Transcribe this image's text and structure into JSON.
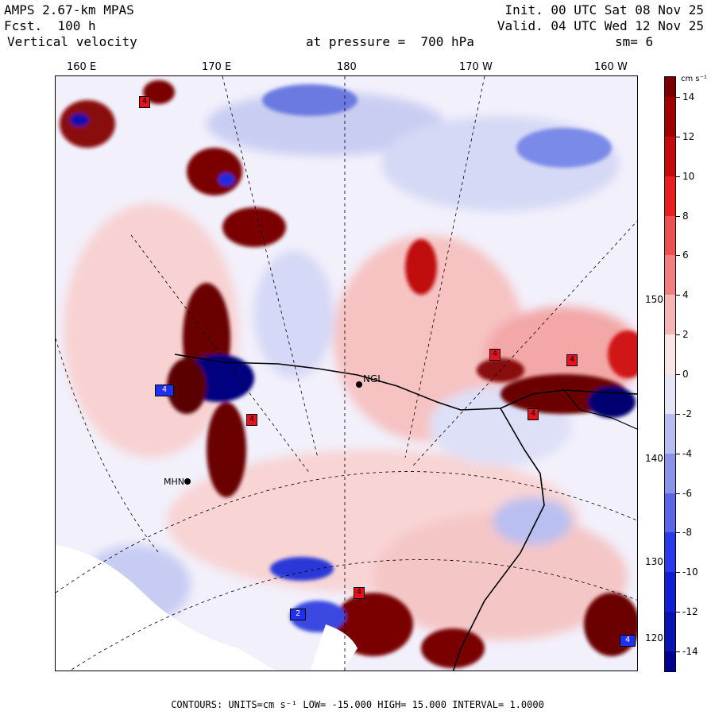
{
  "header": {
    "model": "AMPS 2.67-km MPAS",
    "forecast": "Fcst.  100 h",
    "field": "Vertical velocity",
    "init": "Init. 00 UTC Sat 08 Nov 25",
    "valid": "Valid. 04 UTC Wed 12 Nov 25",
    "level": "at pressure =  700 hPa",
    "smoothing": "sm= 6"
  },
  "map": {
    "longitude_labels": [
      "160 E",
      "170 E",
      "180",
      "170 W",
      "160 W"
    ],
    "latitude_labels": [
      "150 W",
      "140 W",
      "130 W",
      "120 W"
    ],
    "stations": [
      {
        "id": "NGL",
        "label": "NGL"
      },
      {
        "id": "MHN",
        "label": "MHN"
      }
    ],
    "extrema_labels": [
      "4",
      "4",
      "4",
      "4",
      "4",
      "4",
      "4",
      "2",
      "4"
    ]
  },
  "colorbar": {
    "units": "cm s⁻¹",
    "tick_labels": [
      "14",
      "12",
      "10",
      "8",
      "6",
      "4",
      "2",
      "0",
      "-2",
      "-4",
      "-6",
      "-8",
      "-10",
      "-12",
      "-14"
    ],
    "colors": {
      "strong_positive": "#7a0000",
      "positive": "#e8101a",
      "weak_positive": "#f7c8c8",
      "neutral": "#f4f0f4",
      "weak_negative": "#d0d4f4",
      "negative": "#2030f0",
      "strong_negative": "#000090"
    }
  },
  "footer": {
    "text": "CONTOURS:  UNITS=cm s⁻¹  LOW= -15.000     HIGH=  15.000     INTERVAL=   1.0000"
  }
}
